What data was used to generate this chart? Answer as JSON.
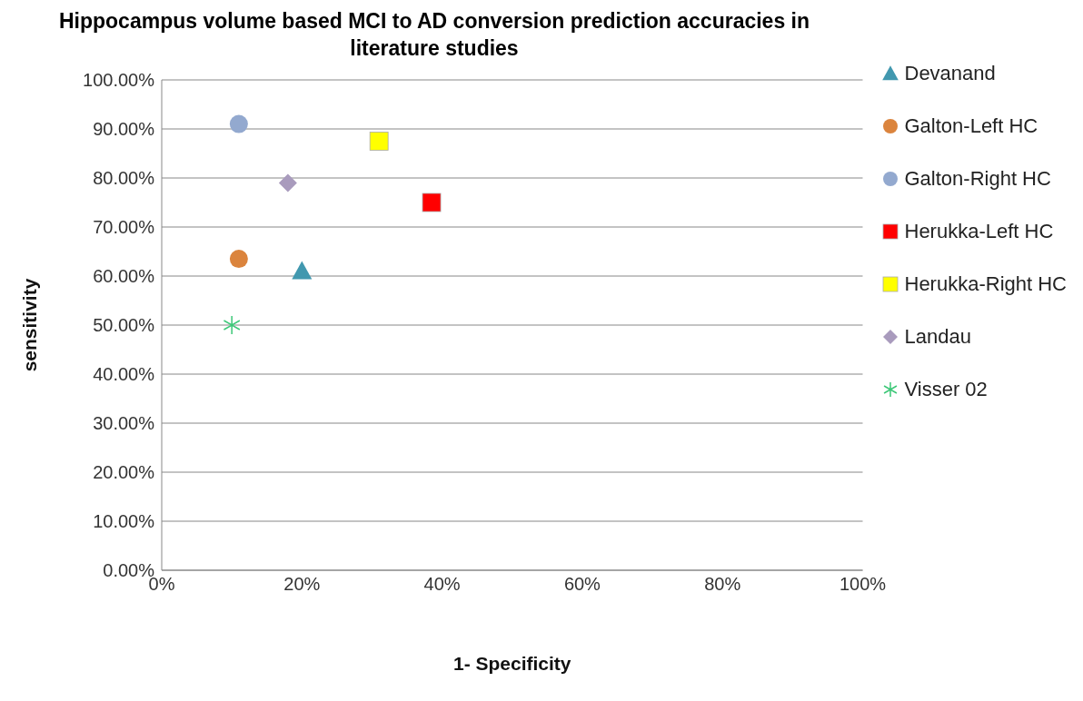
{
  "chart_data": {
    "type": "scatter",
    "title": "Hippocampus volume based MCI to AD conversion prediction accuracies in literature studies",
    "xlabel": "1- Specificity",
    "ylabel": "sensitivity",
    "xlim": [
      0,
      100
    ],
    "xticks": [
      {
        "value": 0,
        "label": "0%"
      },
      {
        "value": 20,
        "label": "20%"
      },
      {
        "value": 40,
        "label": "40%"
      },
      {
        "value": 60,
        "label": "60%"
      },
      {
        "value": 80,
        "label": "80%"
      },
      {
        "value": 100,
        "label": "100%"
      }
    ],
    "ylim": [
      0,
      100
    ],
    "yticks": [
      {
        "value": 0,
        "label": "0.00%"
      },
      {
        "value": 10,
        "label": "10.00%"
      },
      {
        "value": 20,
        "label": "20.00%"
      },
      {
        "value": 30,
        "label": "30.00%"
      },
      {
        "value": 40,
        "label": "40.00%"
      },
      {
        "value": 50,
        "label": "50.00%"
      },
      {
        "value": 60,
        "label": "60.00%"
      },
      {
        "value": 70,
        "label": "70.00%"
      },
      {
        "value": 80,
        "label": "80.00%"
      },
      {
        "value": 90,
        "label": "90.00%"
      },
      {
        "value": 100,
        "label": "100.00%"
      }
    ],
    "grid": "y",
    "legend": "right",
    "series": [
      {
        "name": "Devanand",
        "color": "#4198af",
        "marker": "triangle",
        "x": [
          20
        ],
        "values": [
          61
        ]
      },
      {
        "name": "Galton-Left HC",
        "color": "#db843d",
        "marker": "circle",
        "x": [
          11
        ],
        "values": [
          63.5
        ]
      },
      {
        "name": "Galton-Right HC",
        "color": "#93a9cf",
        "marker": "circle",
        "x": [
          11
        ],
        "values": [
          91
        ]
      },
      {
        "name": "Herukka-Left HC",
        "color": "#ff0000",
        "marker": "square",
        "x": [
          38.5
        ],
        "values": [
          75
        ]
      },
      {
        "name": "Herukka-Right HC",
        "color": "#ffff00",
        "marker": "square",
        "x": [
          31
        ],
        "values": [
          87.5
        ]
      },
      {
        "name": "Landau",
        "color": "#a99bbd",
        "marker": "diamond",
        "x": [
          18
        ],
        "values": [
          79
        ]
      },
      {
        "name": "Visser 02",
        "color": "#3cc777",
        "marker": "cross",
        "x": [
          10
        ],
        "values": [
          50
        ]
      }
    ]
  }
}
